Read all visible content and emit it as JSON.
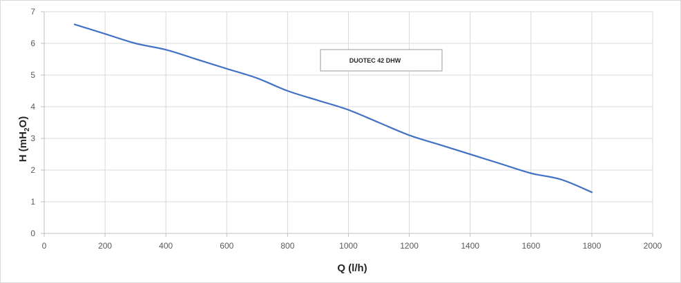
{
  "chart_data": {
    "type": "line",
    "xlabel": "Q (l/h)",
    "ylabel_parts": [
      "H (mH",
      "2",
      "O)"
    ],
    "xlim": [
      0,
      2000
    ],
    "ylim": [
      0,
      7
    ],
    "x_ticks": [
      0,
      200,
      400,
      600,
      800,
      1000,
      1200,
      1400,
      1600,
      1800,
      2000
    ],
    "y_ticks": [
      0,
      1,
      2,
      3,
      4,
      5,
      6,
      7
    ],
    "grid": true,
    "legend_position": "top-center",
    "series": [
      {
        "name": "DUOTEC 42 DHW",
        "color": "#4472c4",
        "x": [
          100,
          200,
          300,
          400,
          500,
          600,
          700,
          800,
          900,
          1000,
          1100,
          1200,
          1300,
          1400,
          1500,
          1600,
          1700,
          1800
        ],
        "y": [
          6.6,
          6.3,
          6.0,
          5.8,
          5.5,
          5.2,
          4.9,
          4.5,
          4.2,
          3.9,
          3.5,
          3.1,
          2.8,
          2.5,
          2.2,
          1.9,
          1.7,
          1.3
        ]
      }
    ]
  }
}
